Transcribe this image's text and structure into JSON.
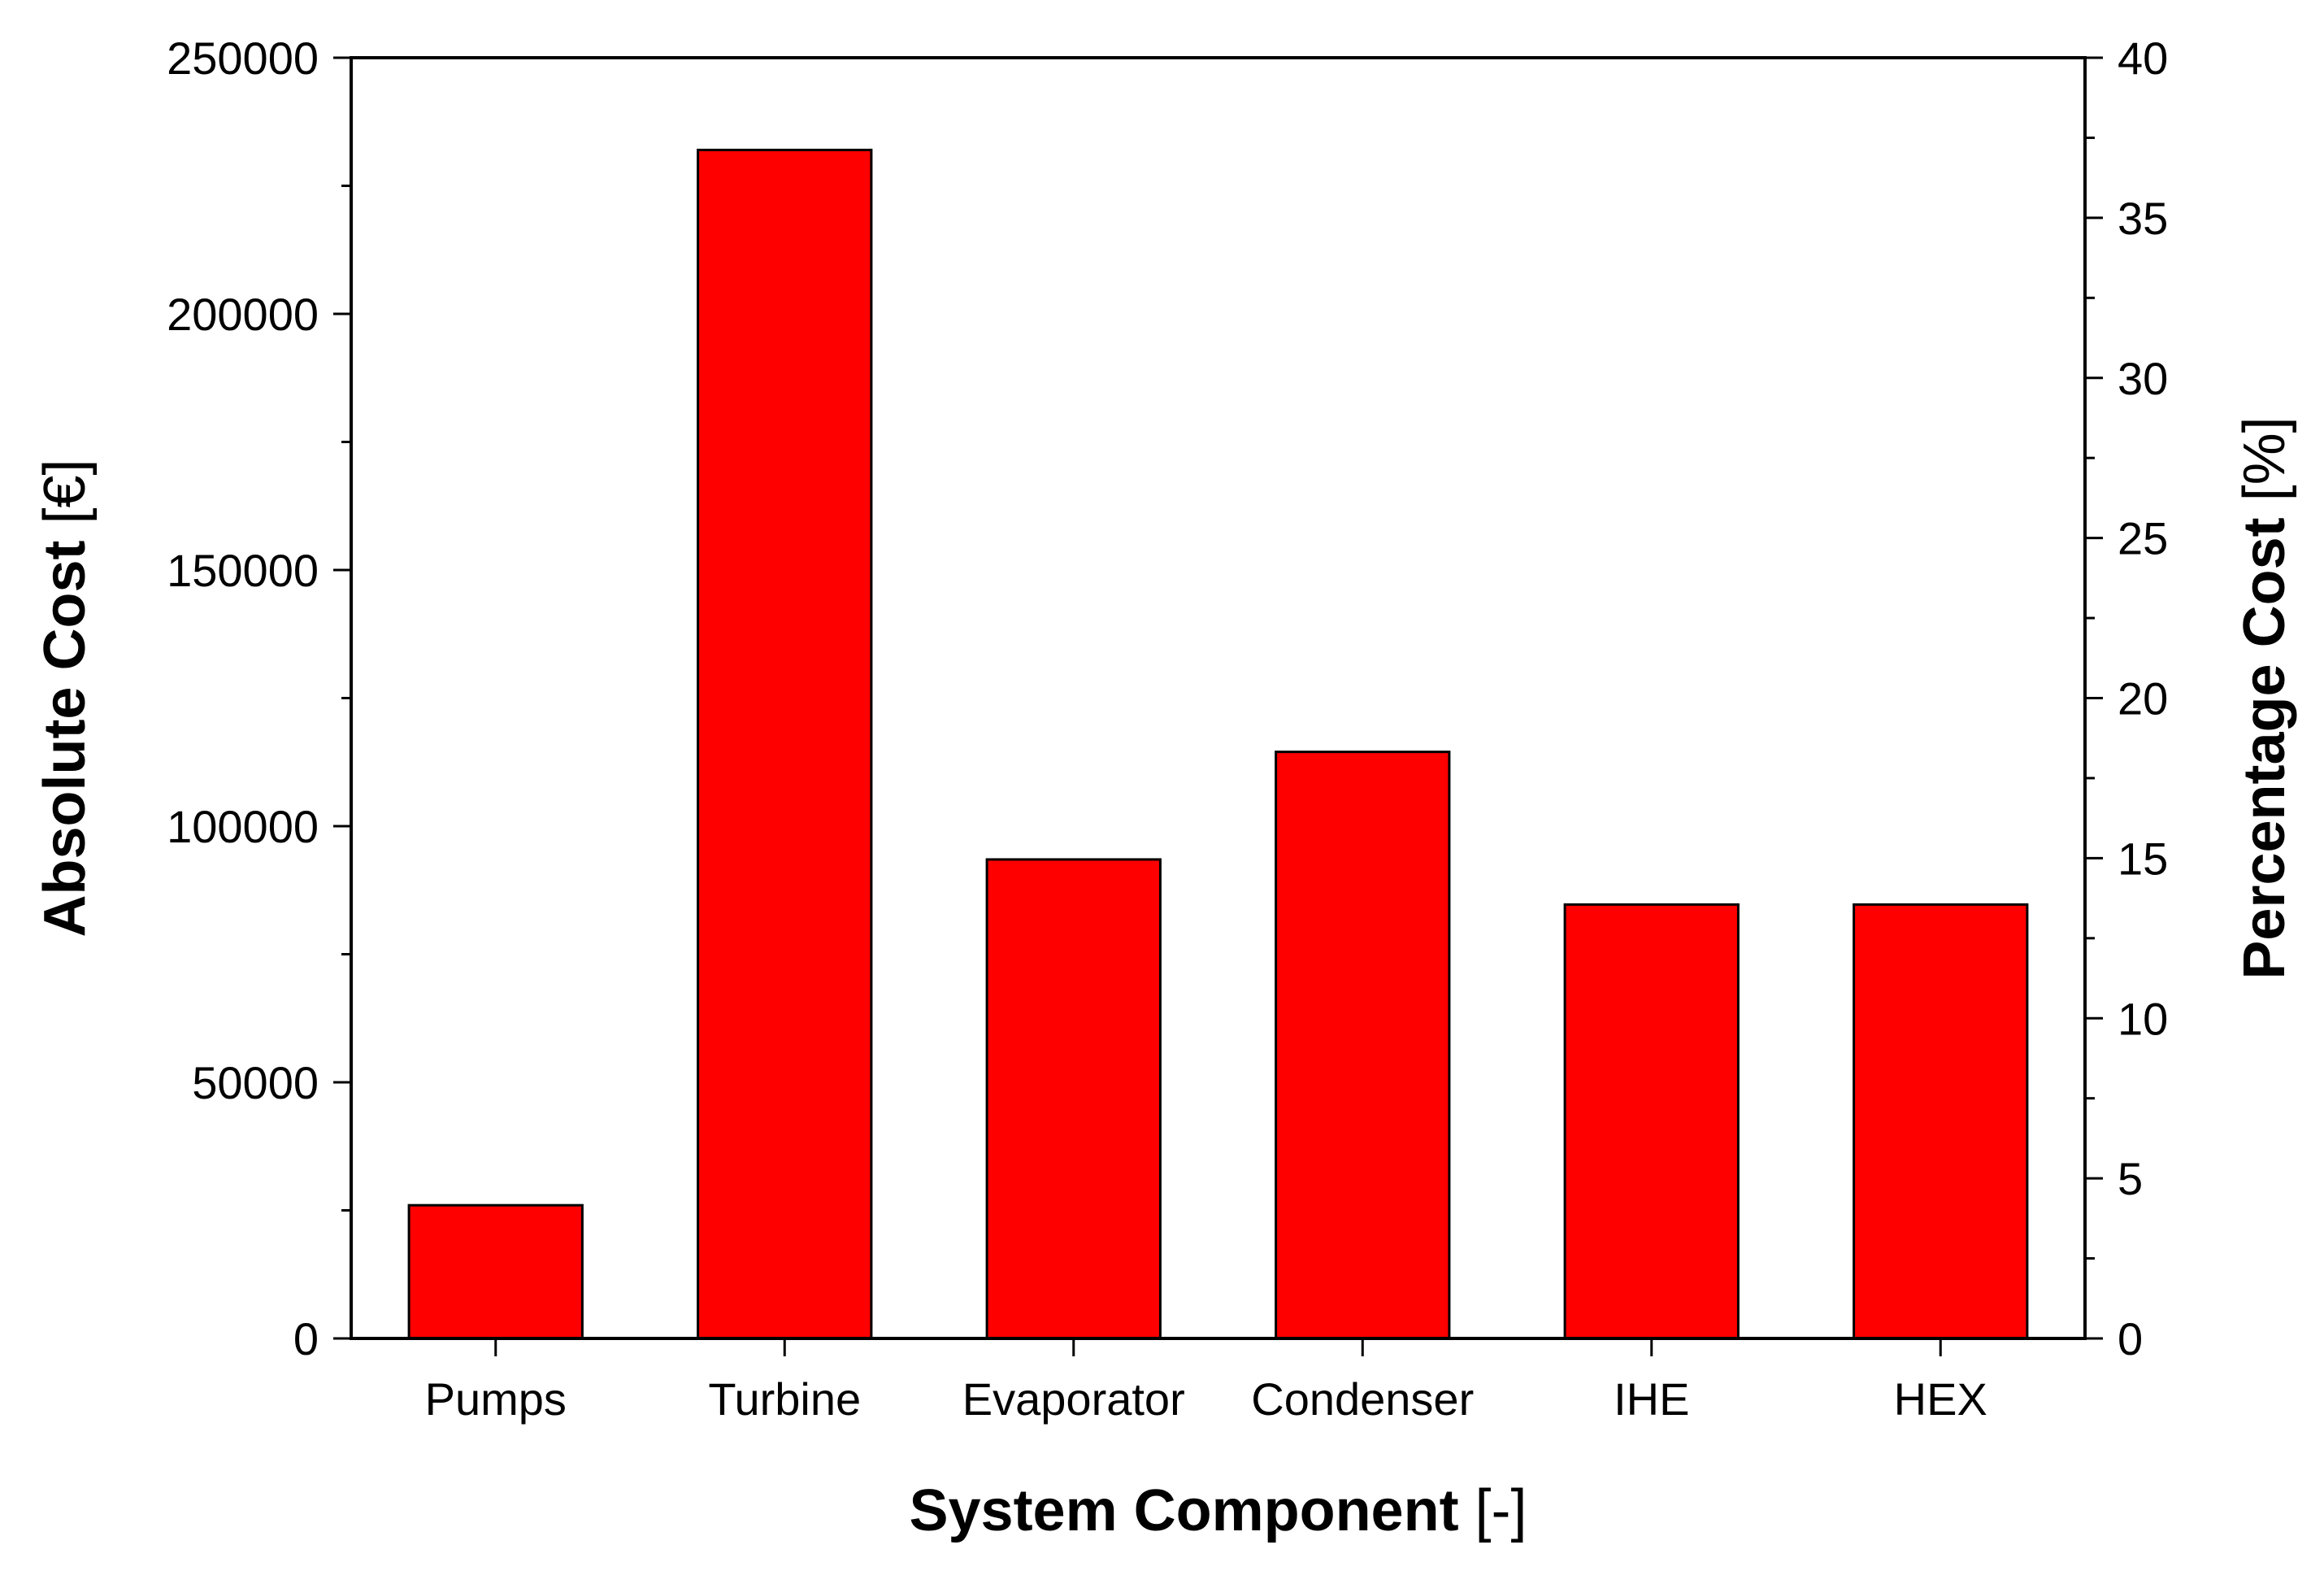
{
  "chart_data": {
    "type": "bar",
    "categories": [
      "Pumps",
      "Turbine",
      "Evaporator",
      "Condenser",
      "IHE",
      "HEX"
    ],
    "values": [
      26000,
      232000,
      93500,
      114500,
      84700,
      84700
    ],
    "bar_color": "#ff0000",
    "xlabel": {
      "bold": "System Component",
      "unit": " [-]"
    },
    "ylabel": {
      "bold": "Absolute Cost",
      "unit": " [€]"
    },
    "y2label": {
      "bold": "Percentage Cost",
      "unit": " [%]"
    },
    "ylim": [
      0,
      250000
    ],
    "yticks": [
      "0",
      "50000",
      "100000",
      "150000",
      "200000",
      "250000"
    ],
    "y2lim": [
      0,
      40
    ],
    "y2ticks": [
      "0",
      "5",
      "10",
      "15",
      "20",
      "25",
      "30",
      "35",
      "40"
    ],
    "grid": false,
    "legend": "none"
  }
}
